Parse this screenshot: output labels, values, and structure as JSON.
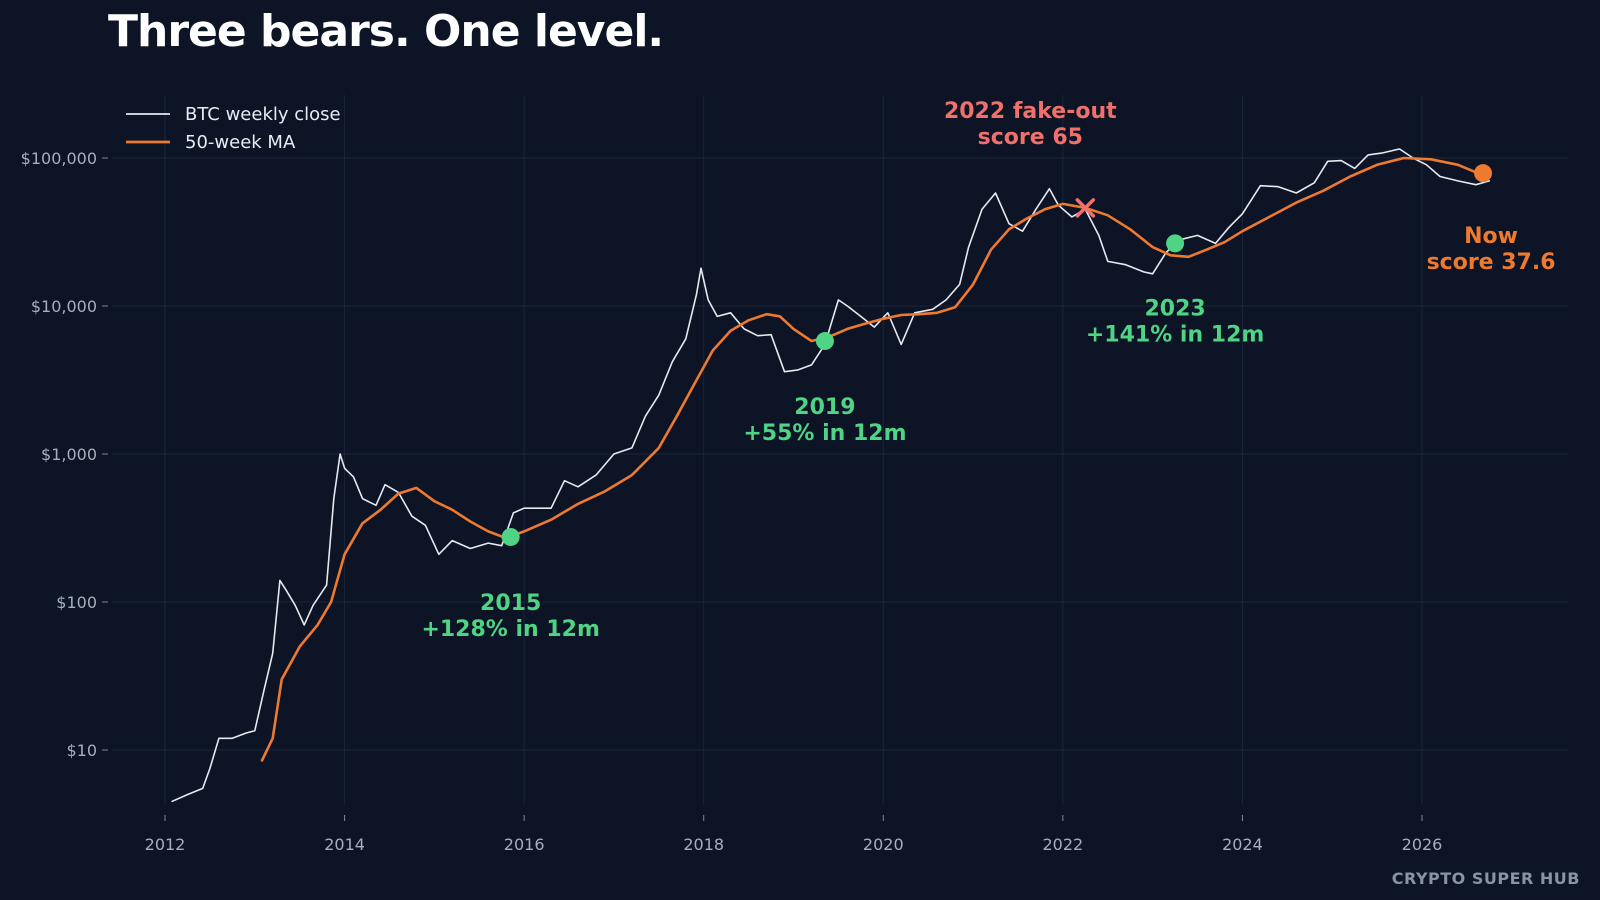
{
  "chart_data": {
    "type": "line",
    "title": "Three bears. One level.",
    "brand": "CRYPTO SUPER HUB",
    "y_scale": "log",
    "ylim": [
      2.5,
      250000
    ],
    "xlim": [
      2011.8,
      2027.3
    ],
    "grid": true,
    "legend_position": "top-left",
    "y_ticks": [
      {
        "value": 10,
        "label": "$10"
      },
      {
        "value": 100,
        "label": "$100"
      },
      {
        "value": 1000,
        "label": "$1,000"
      },
      {
        "value": 10000,
        "label": "$10,000"
      },
      {
        "value": 100000,
        "label": "$100,000"
      }
    ],
    "x_ticks": [
      {
        "value": 2012,
        "label": "2012"
      },
      {
        "value": 2014,
        "label": "2014"
      },
      {
        "value": 2016,
        "label": "2016"
      },
      {
        "value": 2018,
        "label": "2018"
      },
      {
        "value": 2020,
        "label": "2020"
      },
      {
        "value": 2022,
        "label": "2022"
      },
      {
        "value": 2024,
        "label": "2024"
      },
      {
        "value": 2026,
        "label": "2026"
      }
    ],
    "series": [
      {
        "name": "BTC weekly close",
        "color": "#e6e9f0",
        "points": [
          [
            2012.08,
            4.5
          ],
          [
            2012.25,
            5
          ],
          [
            2012.42,
            5.5
          ],
          [
            2012.5,
            7.5
          ],
          [
            2012.6,
            12
          ],
          [
            2012.75,
            12
          ],
          [
            2012.9,
            13
          ],
          [
            2013.0,
            13.5
          ],
          [
            2013.1,
            25
          ],
          [
            2013.2,
            45
          ],
          [
            2013.28,
            140
          ],
          [
            2013.35,
            120
          ],
          [
            2013.45,
            95
          ],
          [
            2013.55,
            70
          ],
          [
            2013.65,
            95
          ],
          [
            2013.8,
            130
          ],
          [
            2013.88,
            500
          ],
          [
            2013.95,
            1000
          ],
          [
            2014.0,
            800
          ],
          [
            2014.1,
            700
          ],
          [
            2014.2,
            500
          ],
          [
            2014.35,
            450
          ],
          [
            2014.45,
            620
          ],
          [
            2014.6,
            550
          ],
          [
            2014.75,
            380
          ],
          [
            2014.9,
            330
          ],
          [
            2015.05,
            210
          ],
          [
            2015.2,
            260
          ],
          [
            2015.4,
            230
          ],
          [
            2015.6,
            250
          ],
          [
            2015.75,
            240
          ],
          [
            2015.88,
            400
          ],
          [
            2016.0,
            430
          ],
          [
            2016.3,
            430
          ],
          [
            2016.45,
            660
          ],
          [
            2016.6,
            600
          ],
          [
            2016.8,
            720
          ],
          [
            2017.0,
            1000
          ],
          [
            2017.2,
            1100
          ],
          [
            2017.35,
            1800
          ],
          [
            2017.5,
            2500
          ],
          [
            2017.65,
            4200
          ],
          [
            2017.8,
            6000
          ],
          [
            2017.92,
            12000
          ],
          [
            2017.97,
            18000
          ],
          [
            2018.05,
            11000
          ],
          [
            2018.15,
            8500
          ],
          [
            2018.3,
            9000
          ],
          [
            2018.45,
            7000
          ],
          [
            2018.6,
            6300
          ],
          [
            2018.75,
            6400
          ],
          [
            2018.9,
            3600
          ],
          [
            2019.05,
            3700
          ],
          [
            2019.2,
            4000
          ],
          [
            2019.35,
            5500
          ],
          [
            2019.5,
            11000
          ],
          [
            2019.6,
            10000
          ],
          [
            2019.75,
            8500
          ],
          [
            2019.9,
            7200
          ],
          [
            2020.05,
            9000
          ],
          [
            2020.2,
            5500
          ],
          [
            2020.35,
            9000
          ],
          [
            2020.55,
            9500
          ],
          [
            2020.7,
            11000
          ],
          [
            2020.85,
            14000
          ],
          [
            2020.95,
            25000
          ],
          [
            2021.1,
            45000
          ],
          [
            2021.25,
            58000
          ],
          [
            2021.4,
            36000
          ],
          [
            2021.55,
            32000
          ],
          [
            2021.7,
            45000
          ],
          [
            2021.85,
            62000
          ],
          [
            2021.95,
            48000
          ],
          [
            2022.1,
            40000
          ],
          [
            2022.25,
            45000
          ],
          [
            2022.4,
            30000
          ],
          [
            2022.5,
            20000
          ],
          [
            2022.7,
            19000
          ],
          [
            2022.9,
            17000
          ],
          [
            2023.0,
            16500
          ],
          [
            2023.15,
            23000
          ],
          [
            2023.3,
            28000
          ],
          [
            2023.5,
            30000
          ],
          [
            2023.7,
            26500
          ],
          [
            2023.85,
            34000
          ],
          [
            2024.0,
            42000
          ],
          [
            2024.2,
            65000
          ],
          [
            2024.4,
            64000
          ],
          [
            2024.6,
            58000
          ],
          [
            2024.8,
            68000
          ],
          [
            2024.95,
            95000
          ],
          [
            2025.1,
            96000
          ],
          [
            2025.25,
            85000
          ],
          [
            2025.4,
            105000
          ],
          [
            2025.55,
            108000
          ],
          [
            2025.75,
            115000
          ],
          [
            2025.9,
            100000
          ],
          [
            2026.05,
            90000
          ],
          [
            2026.2,
            75000
          ],
          [
            2026.4,
            70000
          ],
          [
            2026.6,
            66000
          ],
          [
            2026.75,
            70000
          ]
        ]
      },
      {
        "name": "50-week MA",
        "color": "#ee7a2f",
        "points": [
          [
            2013.08,
            8.5
          ],
          [
            2013.2,
            12
          ],
          [
            2013.3,
            30
          ],
          [
            2013.5,
            50
          ],
          [
            2013.7,
            70
          ],
          [
            2013.85,
            100
          ],
          [
            2014.0,
            210
          ],
          [
            2014.2,
            340
          ],
          [
            2014.4,
            420
          ],
          [
            2014.6,
            540
          ],
          [
            2014.8,
            590
          ],
          [
            2015.0,
            480
          ],
          [
            2015.2,
            420
          ],
          [
            2015.4,
            350
          ],
          [
            2015.6,
            300
          ],
          [
            2015.8,
            270
          ],
          [
            2016.0,
            300
          ],
          [
            2016.3,
            360
          ],
          [
            2016.6,
            460
          ],
          [
            2016.9,
            560
          ],
          [
            2017.2,
            720
          ],
          [
            2017.5,
            1100
          ],
          [
            2017.7,
            1800
          ],
          [
            2017.9,
            3000
          ],
          [
            2018.1,
            5000
          ],
          [
            2018.3,
            6800
          ],
          [
            2018.5,
            8000
          ],
          [
            2018.7,
            8800
          ],
          [
            2018.85,
            8500
          ],
          [
            2019.0,
            7000
          ],
          [
            2019.2,
            5800
          ],
          [
            2019.4,
            6200
          ],
          [
            2019.6,
            7000
          ],
          [
            2019.8,
            7600
          ],
          [
            2020.0,
            8200
          ],
          [
            2020.2,
            8700
          ],
          [
            2020.4,
            8800
          ],
          [
            2020.6,
            9000
          ],
          [
            2020.8,
            9800
          ],
          [
            2021.0,
            14000
          ],
          [
            2021.2,
            24000
          ],
          [
            2021.4,
            33000
          ],
          [
            2021.6,
            39000
          ],
          [
            2021.8,
            45000
          ],
          [
            2022.0,
            49000
          ],
          [
            2022.25,
            46000
          ],
          [
            2022.5,
            41000
          ],
          [
            2022.75,
            33000
          ],
          [
            2023.0,
            25000
          ],
          [
            2023.2,
            22000
          ],
          [
            2023.4,
            21500
          ],
          [
            2023.6,
            24000
          ],
          [
            2023.8,
            27000
          ],
          [
            2024.0,
            32000
          ],
          [
            2024.3,
            40000
          ],
          [
            2024.6,
            50000
          ],
          [
            2024.9,
            60000
          ],
          [
            2025.2,
            75000
          ],
          [
            2025.5,
            90000
          ],
          [
            2025.8,
            100000
          ],
          [
            2026.1,
            98000
          ],
          [
            2026.4,
            90000
          ],
          [
            2026.6,
            80000
          ]
        ]
      }
    ],
    "annotations": [
      {
        "x": 2015.85,
        "y": 275,
        "kind": "dot",
        "color": "#4fd384",
        "lines": [
          "2015",
          "+128% in 12m"
        ]
      },
      {
        "x": 2019.35,
        "y": 5800,
        "kind": "dot",
        "color": "#4fd384",
        "lines": [
          "2019",
          "+55% in 12m"
        ]
      },
      {
        "x": 2023.25,
        "y": 26500,
        "kind": "dot",
        "color": "#4fd384",
        "lines": [
          "2023",
          "+141% in 12m"
        ]
      },
      {
        "x": 2022.25,
        "y": 46000,
        "kind": "cross",
        "color": "#f0706c",
        "lines": [
          "2022 fake-out",
          "score 65"
        ]
      },
      {
        "x": 2026.68,
        "y": 79000,
        "kind": "dot",
        "color": "#ee7a2f",
        "lines": [
          "Now",
          "score 37.6"
        ]
      }
    ]
  }
}
